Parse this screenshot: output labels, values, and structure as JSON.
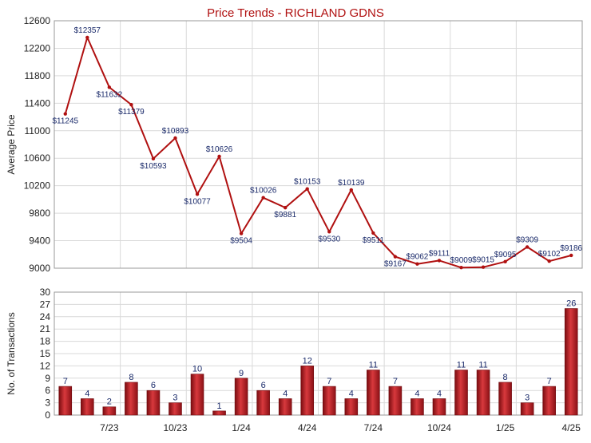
{
  "chart_data": [
    {
      "type": "line",
      "title": "Price Trends - RICHLAND GDNS",
      "ylabel": "Average Price",
      "xlabel": "",
      "ylim": [
        9000,
        12600
      ],
      "yticks": [
        9000,
        9400,
        9800,
        10200,
        10600,
        11000,
        11400,
        11800,
        12200,
        12600
      ],
      "grid": true,
      "series": [
        {
          "values": [
            11245,
            12357,
            11632,
            11379,
            10593,
            10893,
            10077,
            10626,
            9504,
            10026,
            9881,
            10153,
            9530,
            10139,
            9511,
            9167,
            9062,
            9111,
            9009,
            9015,
            9095,
            9309,
            9102,
            9186
          ],
          "labels": [
            "$11245",
            "$12357",
            "$11632",
            "$11379",
            "$10593",
            "$10893",
            "$10077",
            "$10626",
            "$9504",
            "$10026",
            "$9881",
            "$10153",
            "$9530",
            "$10139",
            "$9511",
            "$9167",
            "$9062",
            "$9111",
            "$9009",
            "$9015",
            "$9095",
            "$9309",
            "$9102",
            "$9186"
          ],
          "color": "#b01010"
        }
      ]
    },
    {
      "type": "bar",
      "ylabel": "No. of Transactions",
      "ylim": [
        0,
        30
      ],
      "yticks": [
        0,
        3,
        6,
        9,
        12,
        15,
        18,
        21,
        24,
        27,
        30
      ],
      "x_tick_labels": [
        "7/23",
        "10/23",
        "1/24",
        "4/24",
        "7/24",
        "10/24",
        "1/25",
        "4/25"
      ],
      "grid": true,
      "series": [
        {
          "values": [
            7,
            4,
            2,
            8,
            6,
            3,
            10,
            1,
            9,
            6,
            4,
            12,
            7,
            4,
            11,
            7,
            4,
            4,
            11,
            11,
            8,
            3,
            7,
            26
          ],
          "color": "#c0272d"
        }
      ]
    }
  ]
}
